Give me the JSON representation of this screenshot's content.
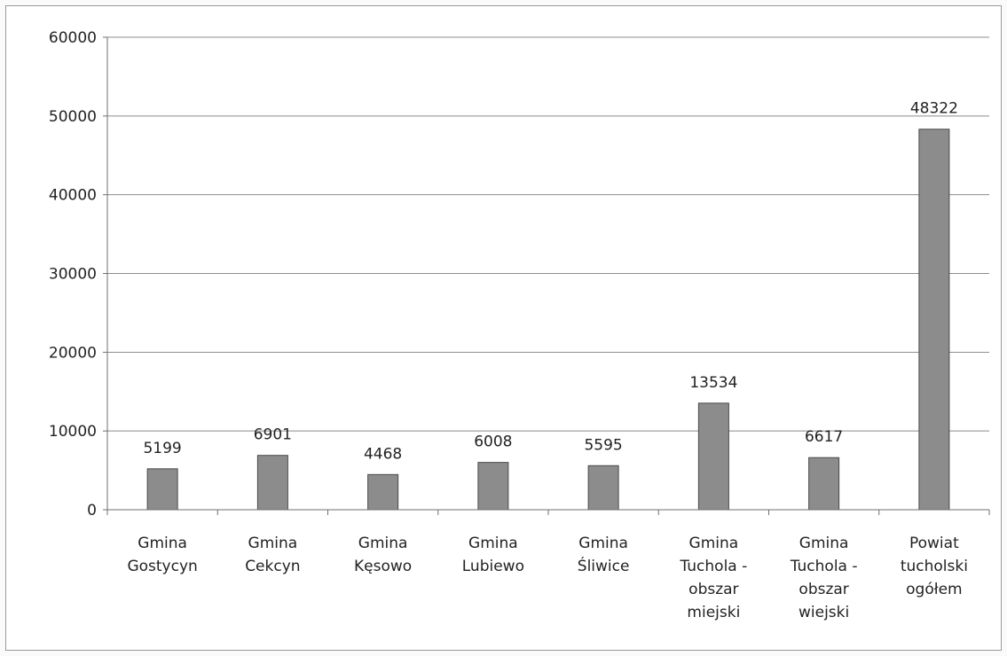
{
  "chart_data": {
    "type": "bar",
    "title": "",
    "xlabel": "",
    "ylabel": "",
    "ylim": [
      0,
      60000
    ],
    "yticks": [
      "0",
      "10000",
      "20000",
      "30000",
      "40000",
      "50000",
      "60000"
    ],
    "grid": true,
    "legend": "none",
    "bar_color": "#8c8c8c",
    "categories": [
      [
        "Gmina",
        "Gostycyn"
      ],
      [
        "Gmina",
        "Cekcyn"
      ],
      [
        "Gmina",
        "Kęsowo"
      ],
      [
        "Gmina",
        "Lubiewo"
      ],
      [
        "Gmina",
        "Śliwice"
      ],
      [
        "Gmina",
        "Tuchola -",
        "obszar",
        "miejski"
      ],
      [
        "Gmina",
        "Tuchola -",
        "obszar",
        "wiejski"
      ],
      [
        "Powiat",
        "tucholski",
        "ogółem"
      ]
    ],
    "values": [
      5199,
      6901,
      4468,
      6008,
      5595,
      13534,
      6617,
      48322
    ],
    "data_labels": [
      "5199",
      "6901",
      "4468",
      "6008",
      "5595",
      "13534",
      "6617",
      "48322"
    ]
  }
}
